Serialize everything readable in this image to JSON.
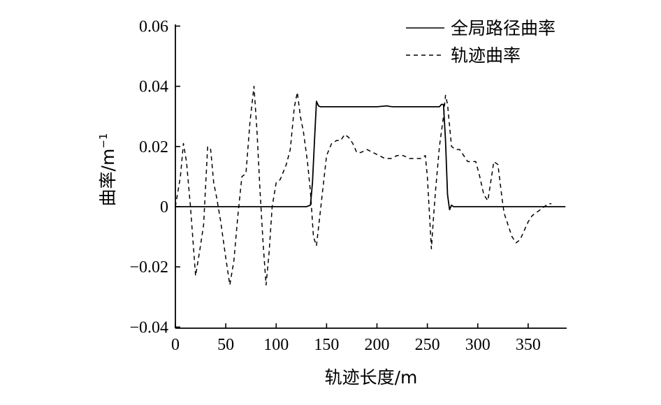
{
  "chart_data": {
    "type": "line",
    "title": "",
    "xlabel": "轨迹长度/m",
    "ylabel": "曲率/m",
    "ylabel_sup": "−1",
    "xlim": [
      0,
      387
    ],
    "ylim": [
      -0.04,
      0.06
    ],
    "xticks": [
      0,
      50,
      100,
      150,
      200,
      250,
      300,
      350
    ],
    "xtick_labels": [
      "0",
      "50",
      "100",
      "150",
      "200",
      "250",
      "300",
      "350"
    ],
    "yticks": [
      0.06,
      0.04,
      0.02,
      0,
      -0.02,
      -0.04
    ],
    "ytick_labels": [
      "0.06",
      "0.04",
      "0.02",
      "0",
      "−0.02",
      "−0.04"
    ],
    "grid": false,
    "legend_position": "top-right",
    "series": [
      {
        "name": "全局路径曲率",
        "style": "solid",
        "color": "#000000",
        "x": [
          0,
          130,
          134,
          136,
          138,
          140,
          142,
          144,
          150,
          200,
          210,
          213,
          216,
          250,
          262,
          264,
          266,
          268,
          270,
          272,
          274,
          276,
          300,
          387
        ],
        "y": [
          0,
          0,
          0.0005,
          0.008,
          0.022,
          0.035,
          0.0335,
          0.0332,
          0.0332,
          0.0332,
          0.0335,
          0.0333,
          0.0332,
          0.0332,
          0.0332,
          0.034,
          0.034,
          0.022,
          0.004,
          -0.001,
          0.0005,
          0,
          0,
          0
        ]
      },
      {
        "name": "轨迹曲率",
        "style": "dashed",
        "color": "#000000",
        "x": [
          0,
          5,
          8,
          11,
          15,
          20,
          24,
          28,
          32,
          35,
          38,
          41,
          45,
          50,
          54,
          58,
          62,
          66,
          70,
          74,
          78,
          81,
          84,
          87,
          90,
          93,
          96,
          100,
          104,
          110,
          114,
          118,
          121,
          124,
          127,
          131,
          134,
          137,
          140,
          143,
          146,
          150,
          155,
          160,
          164,
          168,
          172,
          176,
          180,
          184,
          190,
          196,
          202,
          208,
          214,
          220,
          226,
          232,
          238,
          244,
          248,
          250,
          252,
          254,
          256,
          258,
          262,
          266,
          268,
          270,
          274,
          278,
          282,
          286,
          290,
          294,
          298,
          302,
          306,
          310,
          316,
          320,
          324,
          326,
          330,
          334,
          338,
          342,
          346,
          350,
          354,
          358,
          362,
          366,
          370,
          373
        ],
        "y": [
          0,
          0.01,
          0.021,
          0.015,
          0,
          -0.023,
          -0.015,
          -0.006,
          0.02,
          0.019,
          0.008,
          0.003,
          -0.005,
          -0.017,
          -0.026,
          -0.018,
          -0.003,
          0.01,
          0.011,
          0.028,
          0.04,
          0.025,
          0.005,
          -0.012,
          -0.026,
          -0.015,
          0,
          0.008,
          0.009,
          0.014,
          0.019,
          0.033,
          0.038,
          0.03,
          0.025,
          0.015,
          0.005,
          -0.01,
          -0.013,
          -0.004,
          0.005,
          0.017,
          0.021,
          0.022,
          0.022,
          0.024,
          0.023,
          0.021,
          0.018,
          0.018,
          0.019,
          0.018,
          0.017,
          0.016,
          0.016,
          0.017,
          0.017,
          0.016,
          0.016,
          0.016,
          0.017,
          0.01,
          -0.002,
          -0.014,
          -0.004,
          0.005,
          0.02,
          0.03,
          0.037,
          0.034,
          0.02,
          0.019,
          0.019,
          0.017,
          0.015,
          0.015,
          0.015,
          0.01,
          0.004,
          0.002,
          0.015,
          0.014,
          0.003,
          -0.002,
          -0.006,
          -0.01,
          -0.012,
          -0.011,
          -0.008,
          -0.005,
          -0.003,
          -0.002,
          -0.001,
          0,
          0.001,
          0.001
        ]
      }
    ]
  }
}
